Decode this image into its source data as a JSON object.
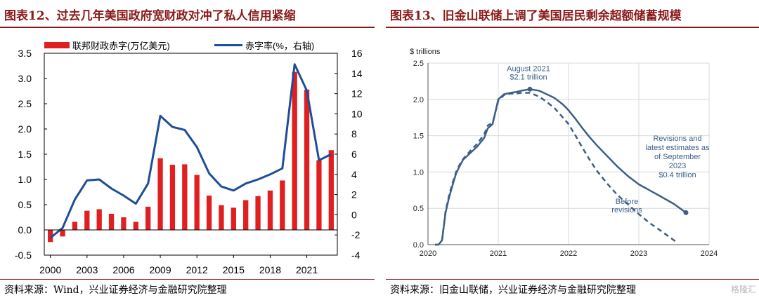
{
  "panels": {
    "left": {
      "title": "图表12、过去几年美国政府宽财政对冲了私人信用紧缩",
      "source": "资料来源：Wind，兴业证券经济与金融研究院整理"
    },
    "right": {
      "title": "图表13、旧金山联储上调了美国居民剩余超额储蓄规模",
      "source": "资料来源：旧金山联储，兴业证券经济与金融研究院整理"
    }
  },
  "watermark": "格隆汇",
  "chart_data": [
    {
      "type": "bar",
      "categories": [
        "2000",
        "2001",
        "2002",
        "2003",
        "2004",
        "2005",
        "2006",
        "2007",
        "2008",
        "2009",
        "2010",
        "2011",
        "2012",
        "2013",
        "2014",
        "2015",
        "2016",
        "2017",
        "2018",
        "2019",
        "2020",
        "2021",
        "2022",
        "2023"
      ],
      "x_ticks": [
        "2000",
        "2003",
        "2006",
        "2009",
        "2012",
        "2015",
        "2018",
        "2021"
      ],
      "y_left_ticks": [
        "-0.5",
        "0.0",
        "0.5",
        "1.0",
        "1.5",
        "2.0",
        "2.5",
        "3.0",
        "3.5"
      ],
      "y_right_ticks": [
        "-4",
        "-2",
        "0",
        "2",
        "4",
        "6",
        "8",
        "10",
        "12",
        "14",
        "16"
      ],
      "ylim_left": [
        -0.5,
        3.5
      ],
      "ylim_right": [
        -4,
        16
      ],
      "legend_position": "top",
      "series": [
        {
          "name": "联邦财政赤字(万亿美元)",
          "type": "bar",
          "axis": "left",
          "color": "#e02020",
          "values": [
            -0.24,
            -0.13,
            0.16,
            0.38,
            0.41,
            0.32,
            0.25,
            0.16,
            0.46,
            1.42,
            1.29,
            1.3,
            1.09,
            0.68,
            0.49,
            0.44,
            0.59,
            0.67,
            0.78,
            0.98,
            3.13,
            2.78,
            1.38,
            1.58
          ]
        },
        {
          "name": "赤字率(%，右轴)",
          "type": "line",
          "axis": "right",
          "color": "#1f4e96",
          "values": [
            -2.3,
            -1.3,
            1.5,
            3.4,
            3.5,
            2.6,
            1.9,
            1.1,
            3.1,
            9.8,
            8.7,
            8.4,
            6.7,
            4.1,
            2.8,
            2.4,
            3.1,
            3.5,
            4.0,
            4.6,
            14.9,
            12.3,
            5.4,
            6.0
          ]
        }
      ]
    },
    {
      "type": "line",
      "ylabel": "$ trillions",
      "x_ticks": [
        "2020",
        "2021",
        "2022",
        "2023",
        "2024"
      ],
      "y_ticks": [
        "0.0",
        "0.5",
        "1.0",
        "1.5",
        "2.0",
        "2.5"
      ],
      "ylim": [
        0,
        2.5
      ],
      "xlim": [
        2020,
        2024
      ],
      "grid": true,
      "color": "#3d5f86",
      "annotations": {
        "peak": [
          "August 2021",
          "$2.1 trillion"
        ],
        "revised": [
          "Revisions and",
          "latest estimates as",
          "of September",
          "2023",
          "$0.4 trillion"
        ],
        "before": [
          "Before",
          "revisions"
        ]
      },
      "series": [
        {
          "name": "Revisions and latest estimates as of September 2023",
          "style": "solid",
          "x": [
            2020.1,
            2020.15,
            2020.2,
            2020.25,
            2020.3,
            2020.35,
            2020.4,
            2020.45,
            2020.5,
            2020.6,
            2020.7,
            2020.8,
            2020.85,
            2020.92,
            2021.0,
            2021.08,
            2021.17,
            2021.25,
            2021.33,
            2021.45,
            2021.58,
            2021.67,
            2021.8,
            2021.92,
            2022.0,
            2022.1,
            2022.2,
            2022.3,
            2022.4,
            2022.55,
            2022.7,
            2022.85,
            2023.0,
            2023.15,
            2023.3,
            2023.5,
            2023.67
          ],
          "y": [
            0.0,
            0.0,
            0.06,
            0.44,
            0.65,
            0.82,
            0.98,
            1.08,
            1.17,
            1.26,
            1.35,
            1.47,
            1.6,
            1.66,
            2.0,
            2.07,
            2.09,
            2.1,
            2.12,
            2.14,
            2.12,
            2.08,
            2.02,
            1.93,
            1.85,
            1.73,
            1.6,
            1.48,
            1.37,
            1.22,
            1.07,
            0.94,
            0.83,
            0.75,
            0.67,
            0.56,
            0.44
          ]
        },
        {
          "name": "Before revisions",
          "style": "dashed",
          "x": [
            2020.1,
            2020.15,
            2020.2,
            2020.25,
            2020.3,
            2020.35,
            2020.4,
            2020.45,
            2020.5,
            2020.6,
            2020.7,
            2020.8,
            2020.85,
            2020.92,
            2021.0,
            2021.08,
            2021.17,
            2021.25,
            2021.33,
            2021.45,
            2021.58,
            2021.67,
            2021.8,
            2021.92,
            2022.0,
            2022.1,
            2022.2,
            2022.3,
            2022.4,
            2022.55,
            2022.7,
            2022.85,
            2023.0,
            2023.15,
            2023.3,
            2023.5,
            2023.53
          ],
          "y": [
            0.0,
            0.0,
            0.06,
            0.46,
            0.68,
            0.85,
            1.0,
            1.1,
            1.18,
            1.29,
            1.39,
            1.52,
            1.64,
            1.68,
            1.98,
            2.06,
            2.08,
            2.08,
            2.09,
            2.09,
            2.04,
            1.98,
            1.88,
            1.75,
            1.66,
            1.5,
            1.33,
            1.17,
            1.02,
            0.84,
            0.68,
            0.55,
            0.42,
            0.3,
            0.2,
            0.06,
            0.04
          ]
        }
      ]
    }
  ]
}
